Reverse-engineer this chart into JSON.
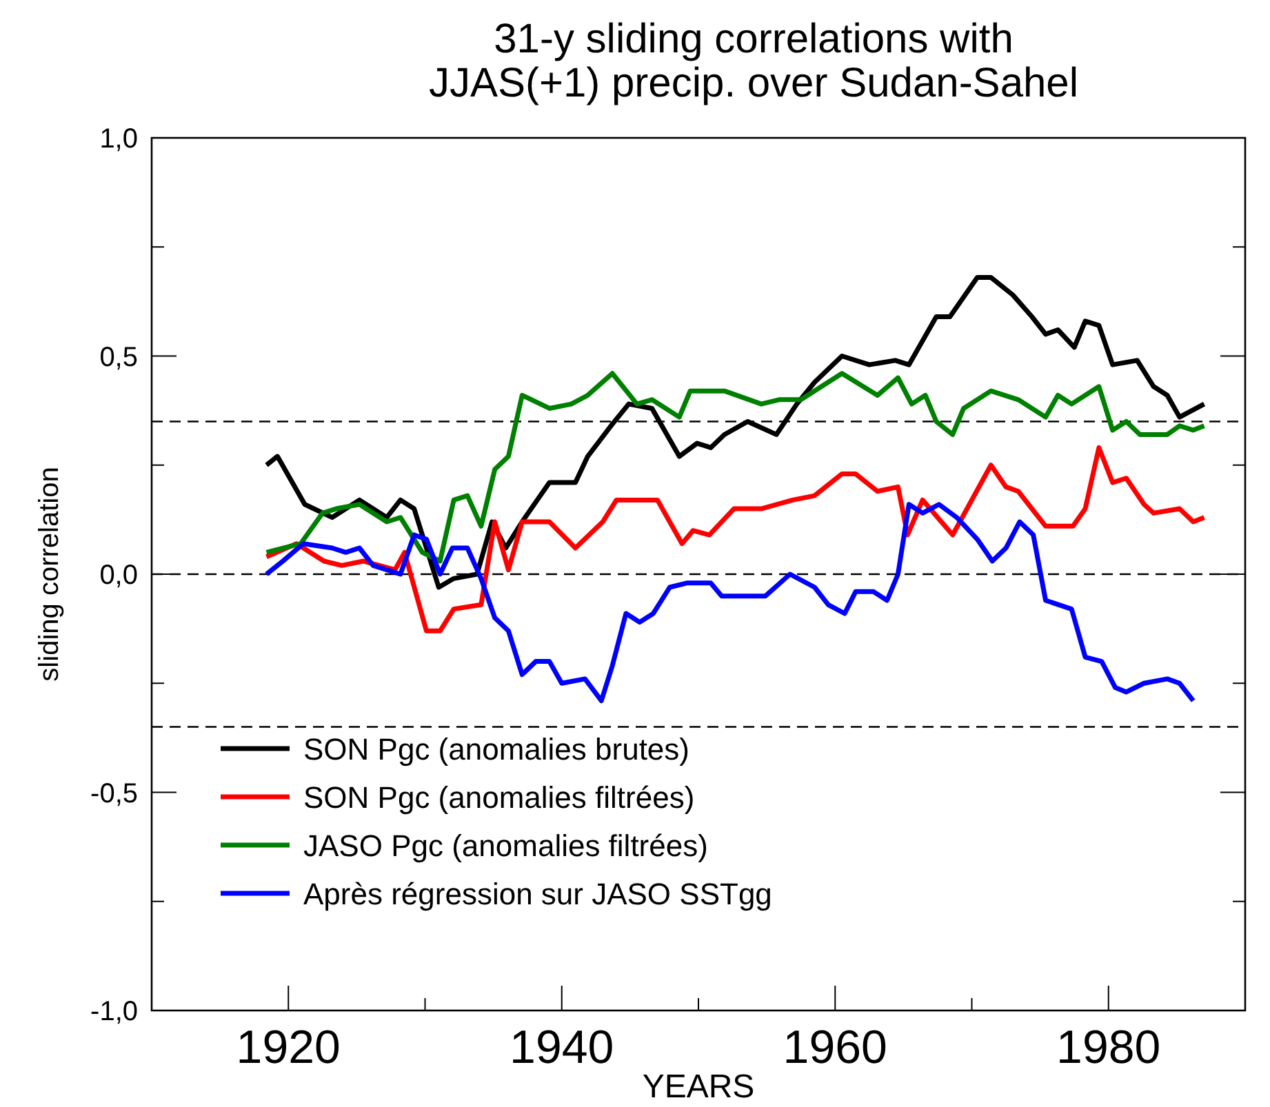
{
  "chart_data": {
    "type": "line",
    "title": "31-y sliding correlations with\nJJAS(+1) precip. over Sudan-Sahel",
    "xlabel": "YEARS",
    "ylabel": "sliding correlation",
    "xlim": [
      1910,
      1990
    ],
    "xticks": [
      1920,
      {
        "value": 1930,
        "label": null
      },
      1940,
      {
        "value": 1950,
        "label": null
      },
      1960,
      {
        "value": 1970,
        "label": null
      },
      1980
    ],
    "ylim": [
      -1,
      1
    ],
    "yticks": [
      {
        "value": -1,
        "label": "-1,0"
      },
      {
        "value": -0.75,
        "label": null
      },
      {
        "value": -0.5,
        "label": "-0,5"
      },
      {
        "value": -0.25,
        "label": null
      },
      {
        "value": 0,
        "label": "0,0"
      },
      {
        "value": 0.25,
        "label": null
      },
      {
        "value": 0.5,
        "label": "0,5"
      },
      {
        "value": 0.75,
        "label": null
      },
      {
        "value": 1,
        "label": "1,0"
      }
    ],
    "legend": "bottom left",
    "line_style": "solid",
    "marker": "none",
    "grid": false,
    "ref_lines": [
      {
        "axis": "y",
        "value": 0.35,
        "line_style": "dashed",
        "color": "#000000"
      },
      {
        "axis": "y",
        "value": 0,
        "line_style": "dashed",
        "color": "#000000"
      },
      {
        "axis": "y",
        "value": -0.35,
        "line_style": "dashed",
        "color": "#000000"
      }
    ],
    "series": [
      {
        "name": "SON Pgc (anomalies brutes)",
        "color": "#000000",
        "x": [
          1918.4,
          1919.2,
          1921.2,
          1923.2,
          1925.2,
          1927.2,
          1928.2,
          1929.2,
          1931.0,
          1932.1,
          1933.8,
          1934.9,
          1935.9,
          1937.1,
          1939.1,
          1941.0,
          1941.9,
          1943.6,
          1944.9,
          1946.6,
          1948.6,
          1949.9,
          1950.9,
          1951.9,
          1953.6,
          1955.7,
          1957.2,
          1958.5,
          1960.5,
          1962.5,
          1964.4,
          1965.4,
          1967.4,
          1968.4,
          1970.4,
          1971.4,
          1973.0,
          1974.4,
          1975.4,
          1976.3,
          1977.5,
          1978.3,
          1979.3,
          1980.3,
          1982.1,
          1983.3,
          1984.3,
          1985.2,
          1987.0
        ],
        "values": [
          0.25,
          0.27,
          0.16,
          0.13,
          0.17,
          0.13,
          0.17,
          0.15,
          -0.03,
          -0.01,
          0.0,
          0.12,
          0.06,
          0.12,
          0.21,
          0.21,
          0.27,
          0.34,
          0.39,
          0.38,
          0.27,
          0.3,
          0.29,
          0.32,
          0.35,
          0.32,
          0.39,
          0.44,
          0.5,
          0.48,
          0.49,
          0.48,
          0.59,
          0.59,
          0.68,
          0.68,
          0.64,
          0.59,
          0.55,
          0.56,
          0.52,
          0.58,
          0.57,
          0.48,
          0.49,
          0.43,
          0.41,
          0.36,
          0.39
        ]
      },
      {
        "name": "SON Pgc (anomalies filtrées)",
        "color": "#ff0000",
        "x": [
          1918.4,
          1920.6,
          1922.6,
          1923.9,
          1925.5,
          1927.8,
          1928.5,
          1930.1,
          1931.1,
          1932.1,
          1934.1,
          1935.1,
          1936.1,
          1937.1,
          1939.1,
          1941.0,
          1943.0,
          1944.0,
          1947.0,
          1948.8,
          1949.6,
          1950.8,
          1952.6,
          1954.6,
          1956.9,
          1958.5,
          1960.5,
          1961.5,
          1963.1,
          1964.6,
          1965.3,
          1966.4,
          1968.6,
          1971.4,
          1972.5,
          1973.4,
          1975.4,
          1977.4,
          1978.3,
          1979.3,
          1980.3,
          1981.3,
          1982.6,
          1983.3,
          1985.2,
          1986.2,
          1987.0
        ],
        "values": [
          0.04,
          0.07,
          0.03,
          0.02,
          0.03,
          0.01,
          0.05,
          -0.13,
          -0.13,
          -0.08,
          -0.07,
          0.12,
          0.01,
          0.12,
          0.12,
          0.06,
          0.12,
          0.17,
          0.17,
          0.07,
          0.1,
          0.09,
          0.15,
          0.15,
          0.17,
          0.18,
          0.23,
          0.23,
          0.19,
          0.2,
          0.09,
          0.17,
          0.09,
          0.25,
          0.2,
          0.19,
          0.11,
          0.11,
          0.15,
          0.29,
          0.21,
          0.22,
          0.16,
          0.14,
          0.15,
          0.12,
          0.13
        ]
      },
      {
        "name": "JASO Pgc (anomalies filtrées)",
        "color": "#008000",
        "x": [
          1918.4,
          1920.9,
          1922.5,
          1923.5,
          1925.2,
          1927.2,
          1928.2,
          1929.8,
          1931.1,
          1932.1,
          1933.1,
          1934.1,
          1935.1,
          1936.1,
          1937.1,
          1939.1,
          1940.7,
          1941.9,
          1943.7,
          1945.5,
          1946.6,
          1948.6,
          1949.4,
          1951.9,
          1954.6,
          1955.9,
          1957.5,
          1960.5,
          1963.1,
          1964.6,
          1965.6,
          1966.6,
          1967.4,
          1968.6,
          1969.4,
          1971.4,
          1973.4,
          1975.4,
          1976.3,
          1977.3,
          1979.3,
          1980.3,
          1981.3,
          1982.3,
          1984.3,
          1985.2,
          1986.2,
          1987.0
        ],
        "values": [
          0.05,
          0.07,
          0.14,
          0.15,
          0.16,
          0.12,
          0.13,
          0.05,
          0.03,
          0.17,
          0.18,
          0.11,
          0.24,
          0.27,
          0.41,
          0.38,
          0.39,
          0.41,
          0.46,
          0.39,
          0.4,
          0.36,
          0.42,
          0.42,
          0.39,
          0.4,
          0.4,
          0.46,
          0.41,
          0.45,
          0.39,
          0.41,
          0.35,
          0.32,
          0.38,
          0.42,
          0.4,
          0.36,
          0.41,
          0.39,
          0.43,
          0.33,
          0.35,
          0.32,
          0.32,
          0.34,
          0.33,
          0.34
        ]
      },
      {
        "name": "Après régression sur JASO SSTgg",
        "color": "#0000ff",
        "x": [
          1918.4,
          1919.6,
          1921.1,
          1923.2,
          1924.2,
          1925.2,
          1926.2,
          1928.2,
          1929.2,
          1930.1,
          1931.1,
          1932.0,
          1933.1,
          1934.1,
          1935.1,
          1936.1,
          1937.1,
          1938.1,
          1939.1,
          1940.0,
          1941.7,
          1942.9,
          1943.7,
          1944.7,
          1945.7,
          1946.7,
          1947.9,
          1949.2,
          1950.9,
          1951.7,
          1954.9,
          1956.7,
          1958.5,
          1959.5,
          1960.7,
          1961.5,
          1962.8,
          1963.8,
          1964.6,
          1965.4,
          1966.4,
          1967.6,
          1968.9,
          1970.4,
          1971.5,
          1972.5,
          1973.5,
          1974.5,
          1975.4,
          1977.3,
          1978.3,
          1979.5,
          1980.5,
          1981.3,
          1982.6,
          1984.3,
          1985.2,
          1986.2
        ],
        "values": [
          0.0,
          0.03,
          0.07,
          0.06,
          0.05,
          0.06,
          0.02,
          0.0,
          0.09,
          0.08,
          0.0,
          0.06,
          0.06,
          -0.01,
          -0.1,
          -0.13,
          -0.23,
          -0.2,
          -0.2,
          -0.25,
          -0.24,
          -0.29,
          -0.21,
          -0.09,
          -0.11,
          -0.09,
          -0.03,
          -0.02,
          -0.02,
          -0.05,
          -0.05,
          0.0,
          -0.03,
          -0.07,
          -0.09,
          -0.04,
          -0.04,
          -0.06,
          0.0,
          0.16,
          0.14,
          0.16,
          0.13,
          0.08,
          0.03,
          0.06,
          0.12,
          0.09,
          -0.06,
          -0.08,
          -0.19,
          -0.2,
          -0.26,
          -0.27,
          -0.25,
          -0.24,
          -0.25,
          -0.29
        ]
      }
    ]
  }
}
